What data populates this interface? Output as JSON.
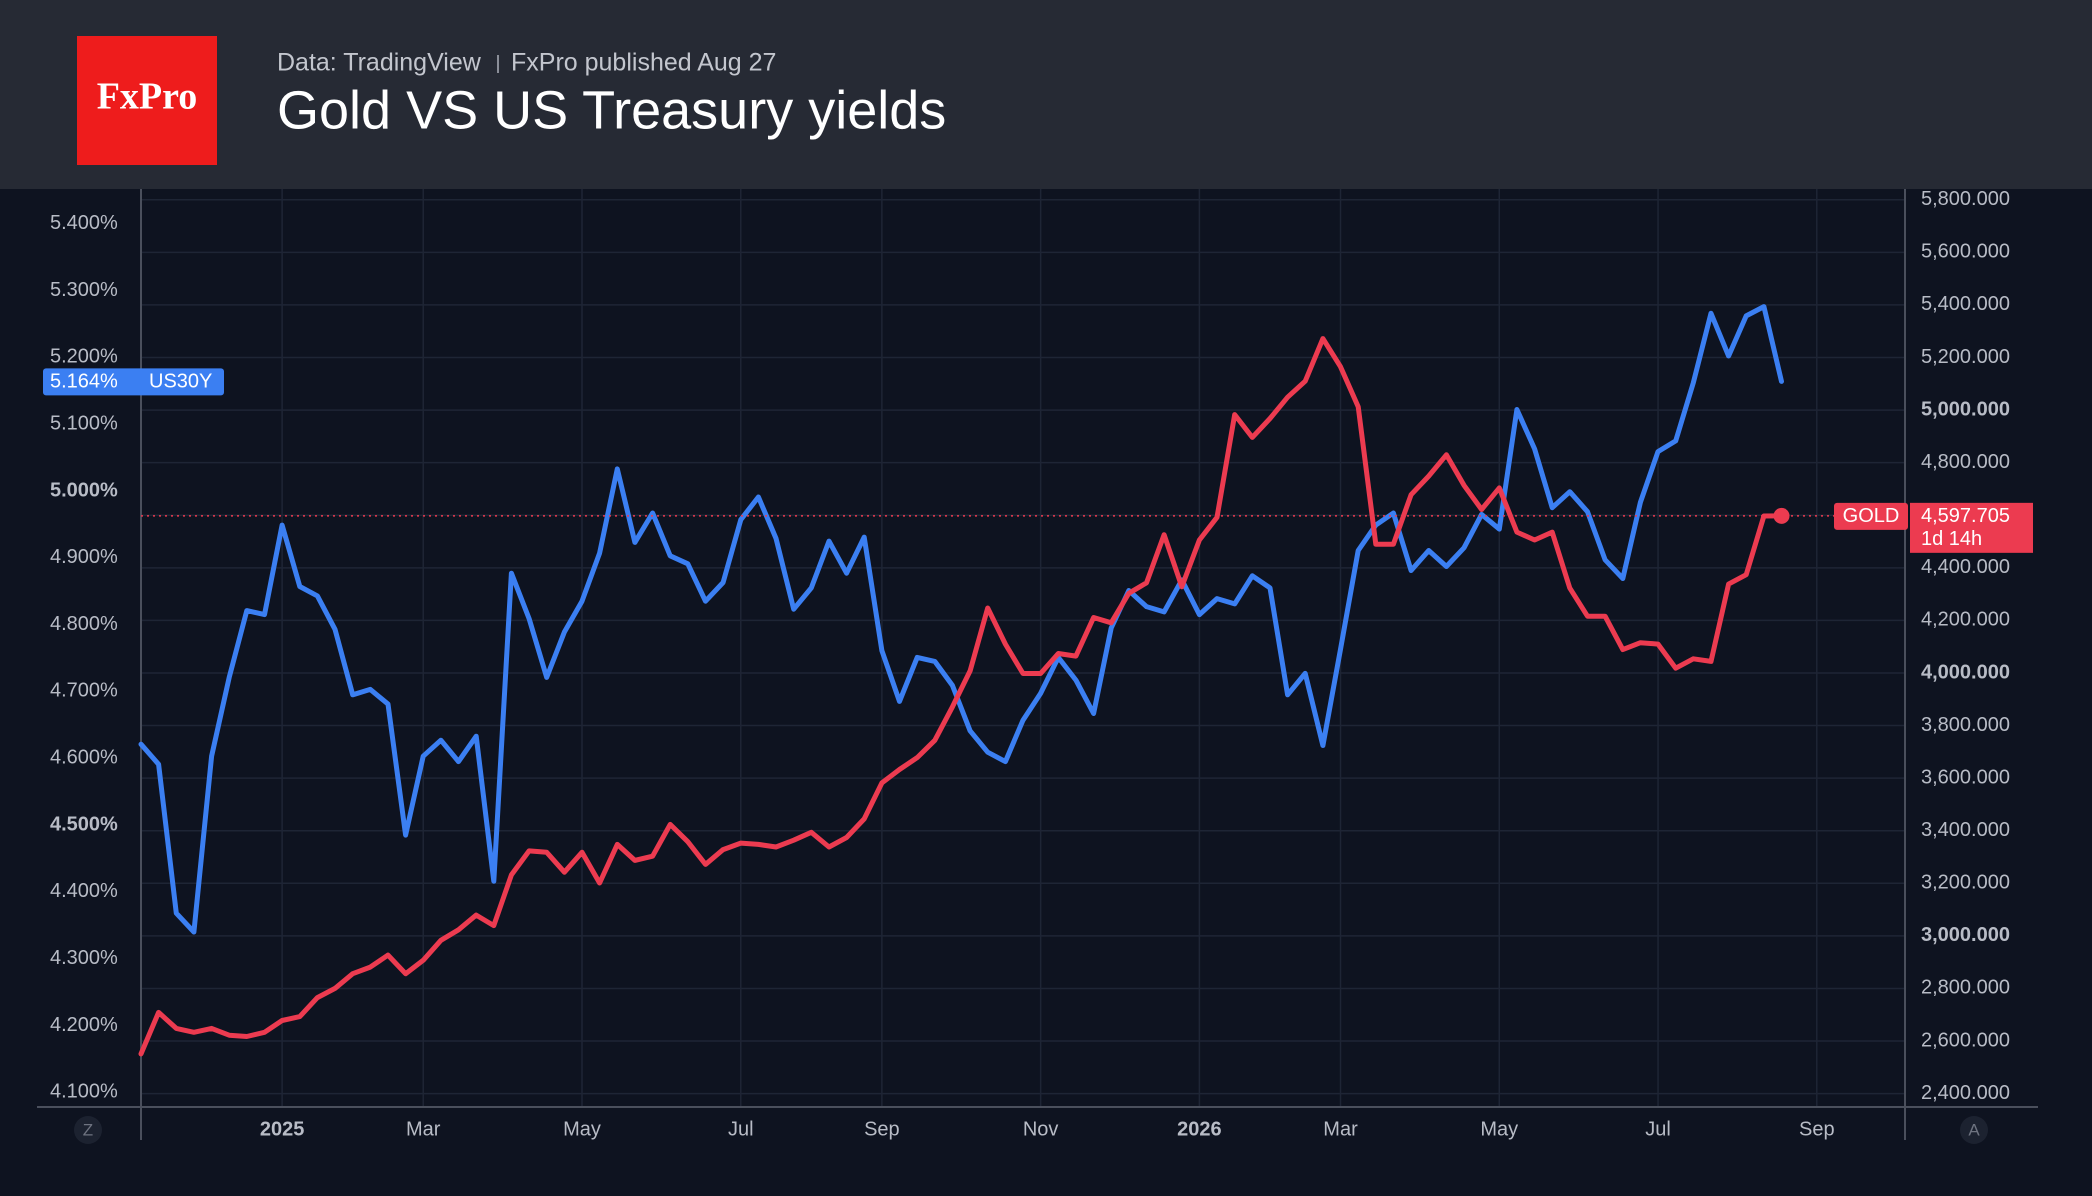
{
  "header": {
    "logo": "FxPro",
    "source": "Data: TradingView",
    "published": "FxPro published Aug 27",
    "title": "Gold VS US Treasury yields"
  },
  "controls": {
    "left": "Z",
    "right": "A"
  },
  "chart_data": {
    "type": "line",
    "categories": [
      null,
      null,
      null,
      null,
      null,
      null,
      null,
      null,
      null,
      null,
      null,
      null,
      null,
      null,
      null,
      null,
      null,
      null,
      null,
      null,
      null,
      null,
      null,
      null,
      null,
      null,
      null,
      null,
      null,
      null,
      null,
      null,
      null,
      null,
      null,
      null,
      null,
      null,
      null,
      null,
      null,
      null,
      null,
      null,
      null,
      null,
      null,
      null,
      null,
      null,
      null,
      null,
      null,
      null,
      null,
      null,
      null,
      null,
      null,
      null,
      null,
      null,
      null,
      null,
      null,
      null,
      null,
      null,
      null,
      null,
      null,
      null,
      null,
      null,
      null,
      null,
      null,
      null,
      null,
      null,
      null,
      null,
      null,
      null,
      null,
      null,
      null,
      null,
      null,
      null,
      null,
      null,
      null,
      null
    ],
    "xlim": [
      0,
      100
    ],
    "xticks": [
      {
        "value": 8,
        "label": "2025",
        "bold": true
      },
      {
        "value": 16,
        "label": "Mar"
      },
      {
        "value": 25,
        "label": "May"
      },
      {
        "value": 34,
        "label": "Jul"
      },
      {
        "value": 42,
        "label": "Sep"
      },
      {
        "value": 51,
        "label": "Nov"
      },
      {
        "value": 60,
        "label": "2026",
        "bold": true
      },
      {
        "value": 68,
        "label": "Mar"
      },
      {
        "value": 77,
        "label": "May"
      },
      {
        "value": 86,
        "label": "Jul"
      },
      {
        "value": 95,
        "label": "Sep"
      }
    ],
    "ylim": [
      4.078,
      5.452
    ],
    "yticks": [
      {
        "value": 5.4,
        "label": "5.400%"
      },
      {
        "value": 5.3,
        "label": "5.300%"
      },
      {
        "value": 5.2,
        "label": "5.200%"
      },
      {
        "value": 5.1,
        "label": "5.100%"
      },
      {
        "value": 5.0,
        "label": "5.000%",
        "bold": true
      },
      {
        "value": 4.9,
        "label": "4.900%"
      },
      {
        "value": 4.8,
        "label": "4.800%"
      },
      {
        "value": 4.7,
        "label": "4.700%"
      },
      {
        "value": 4.6,
        "label": "4.600%"
      },
      {
        "value": 4.5,
        "label": "4.500%",
        "bold": true
      },
      {
        "value": 4.4,
        "label": "4.400%"
      },
      {
        "value": 4.3,
        "label": "4.300%"
      },
      {
        "value": 4.2,
        "label": "4.200%"
      },
      {
        "value": 4.1,
        "label": "4.100%"
      }
    ],
    "y2lim": [
      2349,
      5841
    ],
    "y2ticks": [
      {
        "value": 5800,
        "label": "5,800.000"
      },
      {
        "value": 5600,
        "label": "5,600.000"
      },
      {
        "value": 5400,
        "label": "5,400.000"
      },
      {
        "value": 5200,
        "label": "5,200.000"
      },
      {
        "value": 5000,
        "label": "5,000.000",
        "bold": true
      },
      {
        "value": 4800,
        "label": "4,800.000"
      },
      {
        "value": 4600,
        "label": "4,600.000"
      },
      {
        "value": 4400,
        "label": "4,400.000"
      },
      {
        "value": 4200,
        "label": "4,200.000"
      },
      {
        "value": 4000,
        "label": "4,000.000",
        "bold": true
      },
      {
        "value": 3800,
        "label": "3,800.000"
      },
      {
        "value": 3600,
        "label": "3,600.000"
      },
      {
        "value": 3400,
        "label": "3,400.000"
      },
      {
        "value": 3200,
        "label": "3,200.000"
      },
      {
        "value": 3000,
        "label": "3,000.000",
        "bold": true
      },
      {
        "value": 2800,
        "label": "2,800.000"
      },
      {
        "value": 2600,
        "label": "2,600.000"
      },
      {
        "value": 2400,
        "label": "2,400.000"
      }
    ],
    "grid": true,
    "series": [
      {
        "name": "US30Y",
        "color": "#3b7ff2",
        "axis": "y",
        "last_label": "5.164%",
        "values": [
          4.621,
          4.591,
          4.368,
          4.34,
          4.603,
          4.721,
          4.821,
          4.815,
          4.949,
          4.857,
          4.843,
          4.793,
          4.695,
          4.703,
          4.681,
          4.485,
          4.603,
          4.627,
          4.595,
          4.633,
          4.416,
          4.877,
          4.809,
          4.721,
          4.789,
          4.835,
          4.907,
          5.033,
          4.923,
          4.967,
          4.903,
          4.891,
          4.835,
          4.863,
          4.957,
          4.991,
          4.929,
          4.823,
          4.855,
          4.925,
          4.877,
          4.931,
          4.761,
          4.685,
          4.751,
          4.745,
          4.709,
          4.641,
          4.609,
          4.595,
          4.657,
          4.697,
          4.751,
          4.717,
          4.667,
          4.795,
          4.851,
          4.827,
          4.819,
          4.867,
          4.815,
          4.839,
          4.831,
          4.873,
          4.855,
          4.695,
          4.727,
          4.619,
          4.763,
          4.911,
          4.949,
          4.967,
          4.881,
          4.911,
          4.887,
          4.915,
          4.965,
          4.943,
          5.122,
          5.063,
          4.975,
          4.999,
          4.969,
          4.897,
          4.869,
          4.983,
          5.059,
          5.075,
          5.162,
          5.266,
          5.202,
          5.262,
          5.276,
          5.164
        ]
      },
      {
        "name": "GOLD",
        "color": "#ec3b50",
        "axis": "y2",
        "last_label": "4,597.705",
        "countdown": "1d 14h",
        "values": [
          2551,
          2709,
          2648,
          2633,
          2648,
          2622,
          2617,
          2633,
          2678,
          2693,
          2765,
          2800,
          2856,
          2881,
          2927,
          2856,
          2907,
          2983,
          3023,
          3079,
          3039,
          3232,
          3323,
          3318,
          3242,
          3318,
          3201,
          3348,
          3287,
          3303,
          3424,
          3358,
          3272,
          3328,
          3353,
          3348,
          3338,
          3364,
          3394,
          3338,
          3374,
          3445,
          3582,
          3633,
          3678,
          3744,
          3871,
          4008,
          4247,
          4110,
          3998,
          3998,
          4074,
          4064,
          4211,
          4191,
          4303,
          4343,
          4526,
          4328,
          4506,
          4592,
          4983,
          4896,
          4968,
          5049,
          5110,
          5272,
          5165,
          5013,
          4490,
          4490,
          4678,
          4749,
          4830,
          4714,
          4622,
          4704,
          4536,
          4506,
          4536,
          4323,
          4216,
          4216,
          4089,
          4115,
          4110,
          4018,
          4054,
          4044,
          4338,
          4374,
          4597,
          4597.705
        ]
      }
    ]
  }
}
